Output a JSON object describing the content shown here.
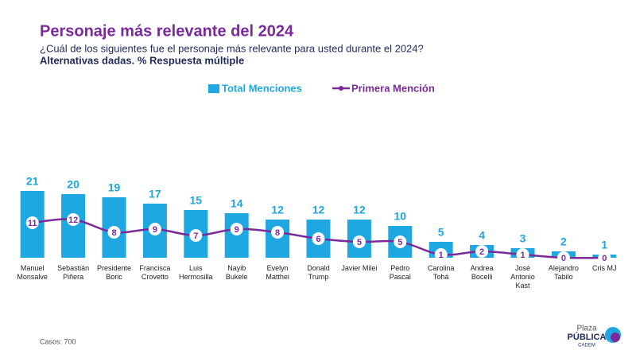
{
  "chart_data": {
    "type": "bar_line",
    "title": "Personaje más relevante del 2024",
    "subtitle": "¿Cuál de los siguientes fue el personaje más relevante para usted durante el 2024?",
    "note": "Alternativas dadas. % Respuesta múltiple",
    "categories": [
      "Manuel\nMonsalve",
      "Sebastián\nPiñera",
      "Presidente\nBoric",
      "Francisca\nCrovetto",
      "Luis\nHermosilla",
      "Nayib\nBukele",
      "Evelyn\nMatthei",
      "Donald\nTrump",
      "Javier Milei",
      "Pedro\nPascal",
      "Carolina\nTohá",
      "Andrea\nBocelli",
      "José\nAntonio\nKast",
      "Alejandro\nTabilo",
      "Cris MJ"
    ],
    "series": [
      {
        "name": "Total Menciones",
        "type": "bar",
        "color": "#1ea7e0",
        "values": [
          21,
          20,
          19,
          17,
          15,
          14,
          12,
          12,
          12,
          10,
          5,
          4,
          3,
          2,
          1
        ]
      },
      {
        "name": "Primera Mención",
        "type": "line",
        "color": "#7b2a9b",
        "values": [
          11,
          12,
          8,
          9,
          7,
          9,
          8,
          6,
          5,
          5,
          1,
          2,
          1,
          0,
          0
        ]
      }
    ],
    "ylim": [
      0,
      60
    ],
    "footnote": "Casos: 700",
    "logo": [
      "Plaza",
      "PÚBLICA",
      "CADEM"
    ]
  }
}
